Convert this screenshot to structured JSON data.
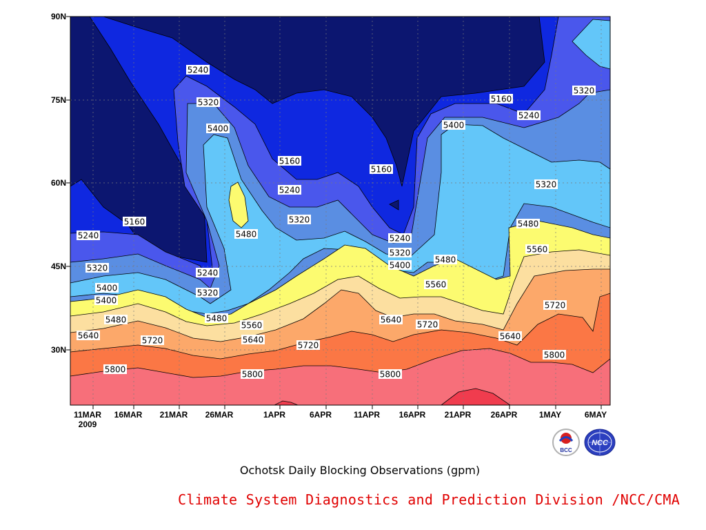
{
  "chart_data": {
    "type": "contour",
    "title": "Ochotsk Daily Blocking Observations (gpm)",
    "x_tick_labels": [
      "11MAR",
      "16MAR",
      "21MAR",
      "26MAR",
      "1APR",
      "6APR",
      "11APR",
      "16APR",
      "21APR",
      "26APR",
      "1MAY",
      "6MAY"
    ],
    "x_year_label": "2009",
    "y_tick_labels": [
      "30N",
      "45N",
      "60N",
      "75N",
      "90N"
    ],
    "x_range": [
      "2009-03-10",
      "2009-05-07"
    ],
    "y_range_deg": [
      20,
      90
    ],
    "contour_levels": [
      5160,
      5240,
      5320,
      5400,
      5480,
      5560,
      5640,
      5720,
      5800,
      5880
    ],
    "level_colors": [
      "#0c1670",
      "#0f28e0",
      "#4a57ec",
      "#5a8ee2",
      "#63c6f9",
      "#fcfb70",
      "#fcdfa0",
      "#fca86a",
      "#fb7745",
      "#f76f7a",
      "#f03c4e"
    ],
    "contour_labels": [
      "5240",
      "5320",
      "5400",
      "5160",
      "5160",
      "5240",
      "5320",
      "5160",
      "5240",
      "5320",
      "5400",
      "5320",
      "5480",
      "5240",
      "5320",
      "5400",
      "5480",
      "5560",
      "5480",
      "5240",
      "5320",
      "5400",
      "5480",
      "5560",
      "5560",
      "5640",
      "5720",
      "5640",
      "5640",
      "5720",
      "5720",
      "5640",
      "5720",
      "5800",
      "5800",
      "5800",
      "5800"
    ]
  },
  "footer": {
    "credit": "Climate System Diagnostics and Prediction Division /NCC/CMA",
    "logo_left_text": "BCC",
    "logo_right_text": "NCC"
  }
}
